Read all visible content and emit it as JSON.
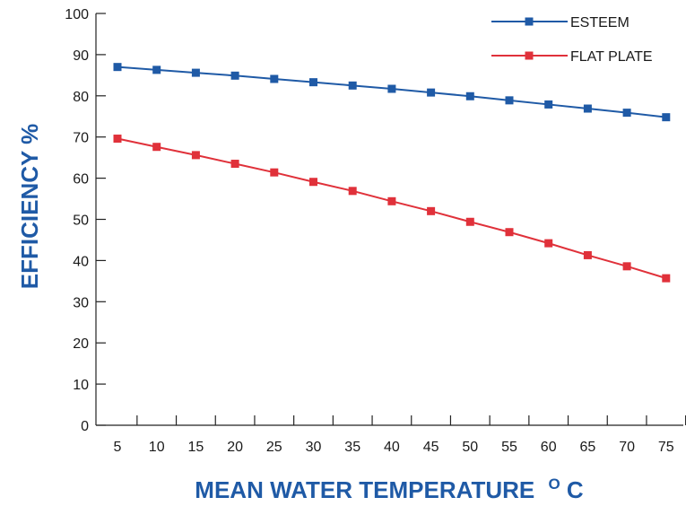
{
  "chart_data": {
    "type": "line",
    "title": "",
    "xlabel": "MEAN WATER TEMPERATURE",
    "xlabel_unit_sup": "O",
    "xlabel_unit": "C",
    "ylabel": "EFFICIENCY %",
    "x": [
      5,
      10,
      15,
      20,
      25,
      30,
      35,
      40,
      45,
      50,
      55,
      60,
      65,
      70,
      75
    ],
    "y_ticks": [
      0,
      10,
      20,
      30,
      40,
      50,
      60,
      70,
      80,
      90,
      100
    ],
    "ylim": [
      0,
      100
    ],
    "grid": false,
    "legend_position": "top-right",
    "series": [
      {
        "name": "ESTEEM",
        "color": "#1f5aa6",
        "marker": "square",
        "values": [
          87,
          86.3,
          85.6,
          84.9,
          84.1,
          83.3,
          82.5,
          81.7,
          80.8,
          79.9,
          78.9,
          77.9,
          76.9,
          75.9,
          74.8
        ]
      },
      {
        "name": "FLAT PLATE",
        "color": "#e0313a",
        "marker": "square",
        "values": [
          69.6,
          67.6,
          65.6,
          63.5,
          61.4,
          59.1,
          56.9,
          54.4,
          52,
          49.4,
          46.9,
          44.2,
          41.3,
          38.6,
          35.7
        ]
      }
    ]
  }
}
